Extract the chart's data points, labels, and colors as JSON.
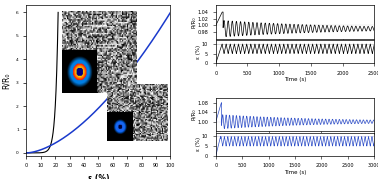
{
  "left_panel": {
    "xlim": [
      0,
      100
    ],
    "ylim_label": "R/R₀",
    "xlabel": "ε (%)",
    "xticks": [
      0,
      10,
      20,
      30,
      40,
      50,
      60,
      70,
      80,
      90,
      100
    ],
    "ytick_labels": [
      "6",
      "5",
      "4",
      "3",
      "2",
      "1",
      "0"
    ],
    "black_color": "#000000",
    "blue_color": "#1a3acc"
  },
  "top_right": {
    "rr0_ylim": [
      0.96,
      1.06
    ],
    "rr0_yticks": [
      0.98,
      1.0,
      1.02,
      1.04
    ],
    "rr0_ytick_labels": [
      "0.98",
      "1.00",
      "1.02",
      "1.04"
    ],
    "eps_ylim": [
      0,
      12
    ],
    "eps_yticks": [
      0,
      5,
      10
    ],
    "xlim": [
      0,
      2500
    ],
    "xticks": [
      0,
      500,
      1000,
      1500,
      2000,
      2500
    ],
    "xlabel": "Time (s)",
    "color": "#000000",
    "rr0_ylabel": "R/R₀",
    "eps_ylabel": "ε (%)"
  },
  "bottom_right": {
    "rr0_ylim": [
      0.96,
      1.08
    ],
    "rr0_yticks": [
      1.0,
      1.04,
      1.08
    ],
    "rr0_ytick_labels": [
      "1.00",
      "1.04",
      "1.08"
    ],
    "eps_ylim": [
      0,
      12
    ],
    "eps_yticks": [
      0,
      5,
      10
    ],
    "xlim": [
      0,
      3000
    ],
    "xticks": [
      0,
      500,
      1000,
      1500,
      2000,
      2500,
      3000
    ],
    "xlabel": "Time (s)",
    "color": "#3050c8",
    "rr0_ylabel": "R/R₀",
    "eps_ylabel": "ε (%)"
  },
  "figure_bg": "#ffffff"
}
